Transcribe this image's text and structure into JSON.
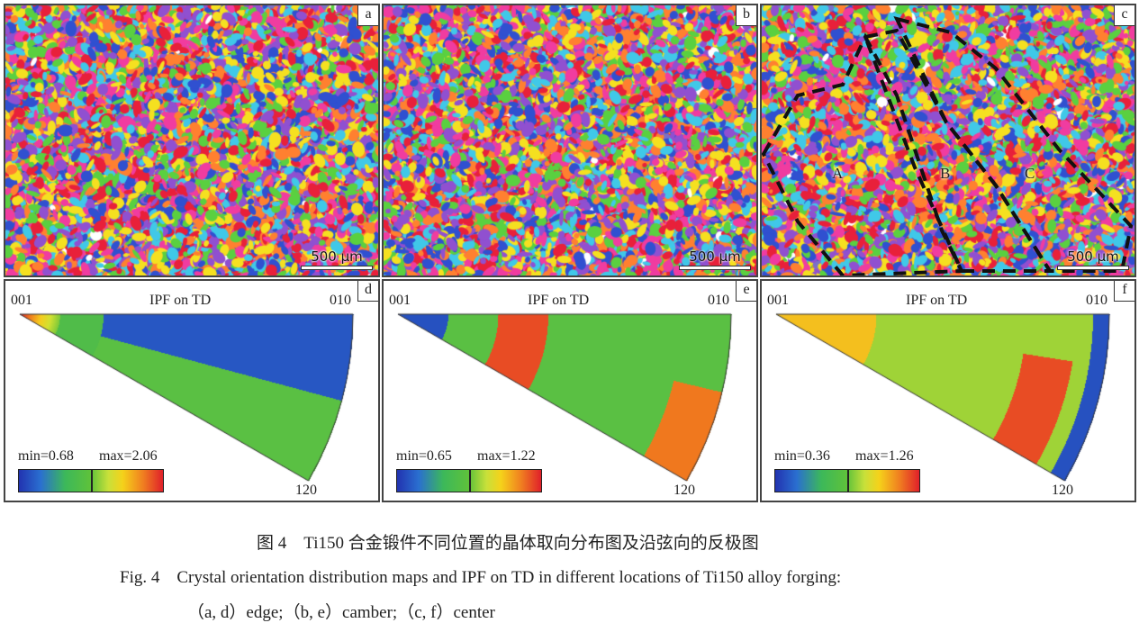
{
  "maps": [
    {
      "label": "a",
      "scale": "500 μm",
      "regions": []
    },
    {
      "label": "b",
      "scale": "500 μm",
      "regions": []
    },
    {
      "label": "c",
      "scale": "500 μm",
      "regions": [
        "A",
        "B",
        "C"
      ]
    }
  ],
  "ipf": [
    {
      "label": "d",
      "title": "IPF on TD",
      "corner_001": "001",
      "corner_010": "010",
      "corner_120": "120",
      "min": "min=0.68",
      "max": "max=2.06"
    },
    {
      "label": "e",
      "title": "IPF on TD",
      "corner_001": "001",
      "corner_010": "010",
      "corner_120": "120",
      "min": "min=0.65",
      "max": "max=1.22"
    },
    {
      "label": "f",
      "title": "IPF on TD",
      "corner_001": "001",
      "corner_010": "010",
      "corner_120": "120",
      "min": "min=0.36",
      "max": "max=1.26"
    }
  ],
  "caption": {
    "zh": "图 4　Ti150 合金锻件不同位置的晶体取向分布图及沿弦向的反极图",
    "en_line1": "Fig. 4　Crystal orientation distribution maps and IPF on TD in different locations of Ti150 alloy forging:",
    "en_line2": "（a, d）edge;（b, e）camber;（c, f）center"
  },
  "colors": {
    "grain_palette": [
      "#e8203a",
      "#f03ca0",
      "#3050d0",
      "#5ad040",
      "#f5e020",
      "#40c8e8",
      "#9050d0",
      "#ff8030",
      "#ffffff"
    ]
  }
}
